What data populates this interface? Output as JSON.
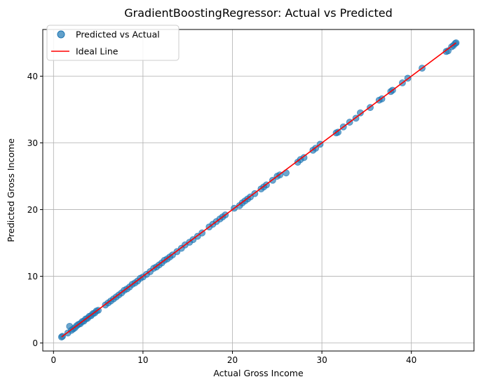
{
  "chart_data": {
    "type": "scatter",
    "title": "GradientBoostingRegressor: Actual vs Predicted",
    "xlabel": "Actual Gross Income",
    "ylabel": "Predicted Gross Income",
    "xlim": [
      -1.2,
      47.0
    ],
    "ylim": [
      -1.2,
      47.0
    ],
    "xticks": [
      0,
      10,
      20,
      30,
      40
    ],
    "yticks": [
      0,
      10,
      20,
      30,
      40
    ],
    "grid": true,
    "legend_position": "top-left",
    "series": [
      {
        "name": "Predicted vs Actual",
        "kind": "scatter",
        "color": "#1f77b4",
        "points": [
          [
            0.9,
            0.9
          ],
          [
            1.0,
            1.0
          ],
          [
            1.6,
            1.5
          ],
          [
            1.8,
            2.5
          ],
          [
            2.0,
            1.9
          ],
          [
            2.2,
            2.1
          ],
          [
            2.4,
            2.3
          ],
          [
            2.6,
            2.6
          ],
          [
            2.8,
            2.8
          ],
          [
            3.0,
            2.9
          ],
          [
            3.2,
            3.2
          ],
          [
            3.4,
            3.3
          ],
          [
            3.6,
            3.6
          ],
          [
            3.8,
            3.7
          ],
          [
            4.0,
            4.0
          ],
          [
            4.2,
            4.1
          ],
          [
            4.4,
            4.4
          ],
          [
            4.6,
            4.5
          ],
          [
            4.8,
            4.8
          ],
          [
            5.0,
            4.9
          ],
          [
            5.8,
            5.7
          ],
          [
            6.1,
            6.0
          ],
          [
            6.4,
            6.3
          ],
          [
            6.7,
            6.6
          ],
          [
            7.0,
            6.9
          ],
          [
            7.3,
            7.2
          ],
          [
            7.6,
            7.5
          ],
          [
            7.9,
            7.9
          ],
          [
            8.2,
            8.1
          ],
          [
            8.5,
            8.4
          ],
          [
            8.8,
            8.8
          ],
          [
            9.1,
            9.0
          ],
          [
            9.4,
            9.3
          ],
          [
            9.7,
            9.7
          ],
          [
            10.0,
            9.9
          ],
          [
            10.4,
            10.3
          ],
          [
            10.8,
            10.7
          ],
          [
            11.2,
            11.2
          ],
          [
            11.5,
            11.4
          ],
          [
            11.8,
            11.7
          ],
          [
            12.1,
            12.0
          ],
          [
            12.4,
            12.4
          ],
          [
            12.7,
            12.6
          ],
          [
            13.0,
            12.9
          ],
          [
            13.3,
            13.2
          ],
          [
            13.8,
            13.7
          ],
          [
            14.3,
            14.2
          ],
          [
            14.7,
            14.7
          ],
          [
            15.2,
            15.1
          ],
          [
            15.6,
            15.5
          ],
          [
            16.1,
            16.0
          ],
          [
            16.6,
            16.5
          ],
          [
            17.4,
            17.4
          ],
          [
            17.8,
            17.8
          ],
          [
            18.2,
            18.2
          ],
          [
            18.6,
            18.6
          ],
          [
            18.9,
            18.9
          ],
          [
            19.2,
            19.2
          ],
          [
            20.2,
            20.2
          ],
          [
            20.8,
            20.6
          ],
          [
            21.1,
            21.0
          ],
          [
            21.4,
            21.3
          ],
          [
            21.7,
            21.6
          ],
          [
            22.0,
            21.9
          ],
          [
            22.5,
            22.4
          ],
          [
            23.2,
            23.1
          ],
          [
            23.5,
            23.4
          ],
          [
            23.8,
            23.7
          ],
          [
            24.5,
            24.4
          ],
          [
            25.0,
            25.0
          ],
          [
            25.3,
            25.2
          ],
          [
            26.0,
            25.5
          ],
          [
            27.3,
            27.1
          ],
          [
            27.6,
            27.5
          ],
          [
            28.0,
            27.8
          ],
          [
            29.0,
            28.9
          ],
          [
            29.3,
            29.2
          ],
          [
            29.8,
            29.8
          ],
          [
            31.6,
            31.5
          ],
          [
            31.8,
            31.6
          ],
          [
            32.4,
            32.4
          ],
          [
            33.1,
            33.1
          ],
          [
            33.8,
            33.7
          ],
          [
            34.3,
            34.5
          ],
          [
            35.4,
            35.3
          ],
          [
            36.4,
            36.4
          ],
          [
            36.7,
            36.6
          ],
          [
            37.7,
            37.7
          ],
          [
            37.9,
            37.9
          ],
          [
            39.0,
            39.0
          ],
          [
            39.6,
            39.7
          ],
          [
            41.2,
            41.2
          ],
          [
            43.9,
            43.7
          ],
          [
            44.1,
            43.8
          ],
          [
            44.5,
            44.4
          ],
          [
            44.7,
            44.6
          ],
          [
            44.9,
            44.9
          ],
          [
            45.0,
            45.0
          ]
        ]
      },
      {
        "name": "Ideal Line",
        "kind": "line",
        "color": "#ff0000",
        "points": [
          [
            0.9,
            0.9
          ],
          [
            45.0,
            45.0
          ]
        ]
      }
    ]
  }
}
